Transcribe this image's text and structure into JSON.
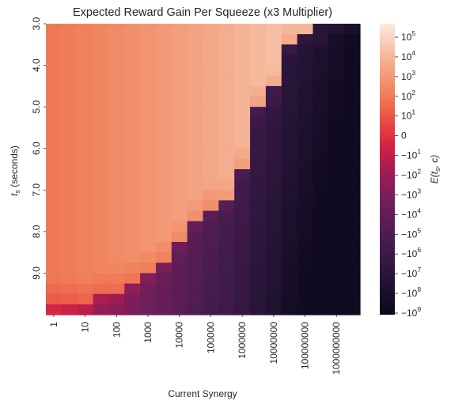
{
  "chart_data": {
    "type": "heatmap",
    "title": "Expected Reward Gain Per Squeeze (x3 Multiplier)",
    "xlabel": "Current Synergy",
    "ylabel": "t_s (seconds)",
    "colorbar_label": "E(t_s, c)",
    "x": [
      1,
      3,
      10,
      32,
      100,
      316,
      1000,
      3162,
      10000,
      31623,
      100000,
      316228,
      1000000,
      3162278,
      10000000,
      31622777,
      100000000,
      316227766,
      1000000000,
      3162277660
    ],
    "x_tick_labels": [
      "1",
      "10",
      "100",
      "1000",
      "10000",
      "100000",
      "1000000",
      "10000000",
      "100000000",
      "1000000000"
    ],
    "y_tick_labels": [
      "3.0",
      "4.0",
      "5.0",
      "6.0",
      "7.0",
      "8.0",
      "9.0"
    ],
    "y_range": [
      3.0,
      10.0
    ],
    "color_scale": "symlog",
    "colorbar_ticks": [
      "10^5",
      "10^4",
      "10^3",
      "10^2",
      "10^1",
      "0",
      "-10^1",
      "-10^2",
      "-10^3",
      "-10^4",
      "-10^5",
      "-10^6",
      "-10^7",
      "-10^8",
      "-10^9"
    ],
    "colormap": "rocket",
    "boundary_t": [
      9.7,
      9.7,
      9.7,
      9.5,
      9.4,
      9.2,
      9.0,
      8.7,
      8.3,
      7.8,
      7.4,
      7.3,
      6.5,
      5.0,
      4.6,
      3.4,
      3.3,
      3.1,
      3.0,
      3.0
    ],
    "positive_log_range": [
      2.0,
      5.5
    ],
    "negative_log_range": [
      0.5,
      9.5
    ],
    "grid": false
  }
}
